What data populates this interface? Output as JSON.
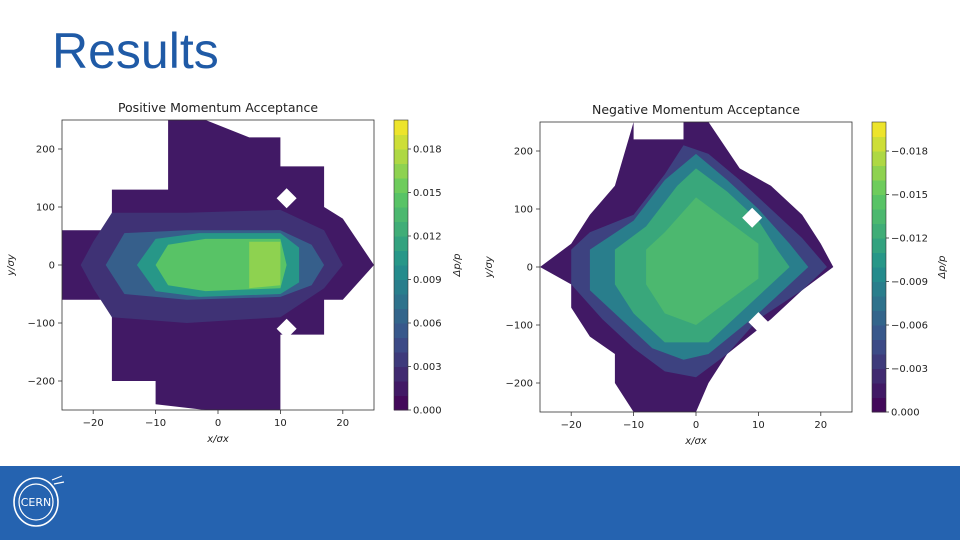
{
  "slide": {
    "title": "Results"
  },
  "colors": {
    "title": "#1f5aa6",
    "footer": "#2563b0"
  },
  "logo": {
    "text": "CERN"
  },
  "chart_data": [
    {
      "type": "heatmap",
      "title": "Positive Momentum Acceptance",
      "xlabel": "x/σx",
      "ylabel": "y/σy",
      "colorbar_label": "Δp/p",
      "xlim": [
        -25,
        25
      ],
      "ylim": [
        -250,
        250
      ],
      "xticks": [
        "−20",
        "−10",
        "0",
        "10",
        "20"
      ],
      "xtick_values": [
        -20,
        -10,
        0,
        10,
        20
      ],
      "yticks": [
        "−200",
        "−100",
        "0",
        "100",
        "200"
      ],
      "ytick_values": [
        -200,
        -100,
        0,
        100,
        200
      ],
      "colorbar_range": [
        0.0,
        0.02
      ],
      "colorbar_ticks": [
        "0.000",
        "0.003",
        "0.006",
        "0.009",
        "0.012",
        "0.015",
        "0.018"
      ],
      "colorbar_tick_values": [
        0.0,
        0.003,
        0.006,
        0.009,
        0.012,
        0.015,
        0.018
      ],
      "colormap": "viridis",
      "reversed": false,
      "regions": [
        {
          "value": 0.0015,
          "points": [
            [
              -17,
              130
            ],
            [
              -8,
              130
            ],
            [
              -8,
              250
            ],
            [
              -2,
              250
            ],
            [
              5,
              220
            ],
            [
              10,
              220
            ],
            [
              10,
              170
            ],
            [
              17,
              170
            ],
            [
              17,
              100
            ],
            [
              20,
              80
            ],
            [
              25,
              0
            ],
            [
              20,
              -60
            ],
            [
              17,
              -60
            ],
            [
              17,
              -120
            ],
            [
              10,
              -120
            ],
            [
              10,
              -250
            ],
            [
              -2,
              -250
            ],
            [
              -10,
              -240
            ],
            [
              -10,
              -200
            ],
            [
              -17,
              -200
            ],
            [
              -17,
              -60
            ],
            [
              -25,
              -60
            ],
            [
              -25,
              60
            ],
            [
              -17,
              60
            ]
          ]
        },
        {
          "value": 0.003,
          "points": [
            [
              -17,
              90
            ],
            [
              -5,
              90
            ],
            [
              10,
              95
            ],
            [
              17,
              60
            ],
            [
              20,
              0
            ],
            [
              17,
              -40
            ],
            [
              10,
              -90
            ],
            [
              -5,
              -100
            ],
            [
              -17,
              -90
            ],
            [
              -20,
              -40
            ],
            [
              -22,
              0
            ],
            [
              -20,
              40
            ]
          ]
        },
        {
          "value": 0.006,
          "points": [
            [
              -15,
              55
            ],
            [
              -5,
              60
            ],
            [
              10,
              60
            ],
            [
              15,
              35
            ],
            [
              17,
              0
            ],
            [
              15,
              -35
            ],
            [
              10,
              -55
            ],
            [
              -5,
              -60
            ],
            [
              -15,
              -50
            ],
            [
              -18,
              0
            ]
          ]
        },
        {
          "value": 0.0105,
          "points": [
            [
              -10,
              45
            ],
            [
              -3,
              55
            ],
            [
              10,
              55
            ],
            [
              13,
              30
            ],
            [
              13,
              -30
            ],
            [
              10,
              -50
            ],
            [
              -3,
              -55
            ],
            [
              -10,
              -45
            ],
            [
              -13,
              0
            ]
          ]
        },
        {
          "value": 0.0145,
          "points": [
            [
              -8,
              35
            ],
            [
              -2,
              45
            ],
            [
              10,
              45
            ],
            [
              11,
              0
            ],
            [
              10,
              -40
            ],
            [
              -2,
              -45
            ],
            [
              -8,
              -35
            ],
            [
              -10,
              0
            ]
          ]
        },
        {
          "value": 0.0165,
          "points": [
            [
              5,
              40
            ],
            [
              10,
              40
            ],
            [
              10,
              -35
            ],
            [
              5,
              -40
            ]
          ]
        }
      ],
      "holes": [
        {
          "x": 11,
          "y": 115
        },
        {
          "x": 11,
          "y": -110
        }
      ]
    },
    {
      "type": "heatmap",
      "title": "Negative Momentum Acceptance",
      "xlabel": "x/σx",
      "ylabel": "y/σy",
      "colorbar_label": "Δp/p",
      "xlim": [
        -25,
        25
      ],
      "ylim": [
        -250,
        250
      ],
      "xticks": [
        "−20",
        "−10",
        "0",
        "10",
        "20"
      ],
      "xtick_values": [
        -20,
        -10,
        0,
        10,
        20
      ],
      "yticks": [
        "−200",
        "−100",
        "0",
        "100",
        "200"
      ],
      "ytick_values": [
        -200,
        -100,
        0,
        100,
        200
      ],
      "colorbar_range": [
        -0.02,
        0.0
      ],
      "colorbar_ticks": [
        "0.000",
        "−0.003",
        "−0.006",
        "−0.009",
        "−0.012",
        "−0.015",
        "−0.018"
      ],
      "colorbar_tick_values": [
        0.0,
        -0.003,
        -0.006,
        -0.009,
        -0.012,
        -0.015,
        -0.018
      ],
      "colormap": "viridis",
      "reversed": true,
      "regions": [
        {
          "value": -0.0015,
          "points": [
            [
              -10,
              250
            ],
            [
              -10,
              220
            ],
            [
              -2,
              220
            ],
            [
              -2,
              250
            ],
            [
              2,
              250
            ],
            [
              7,
              170
            ],
            [
              12,
              140
            ],
            [
              17,
              90
            ],
            [
              20,
              40
            ],
            [
              22,
              0
            ],
            [
              17,
              -40
            ],
            [
              12,
              -90
            ],
            [
              5,
              -150
            ],
            [
              2,
              -200
            ],
            [
              0,
              -250
            ],
            [
              -10,
              -250
            ],
            [
              -13,
              -200
            ],
            [
              -13,
              -150
            ],
            [
              -17,
              -120
            ],
            [
              -20,
              -70
            ],
            [
              -20,
              -30
            ],
            [
              -25,
              0
            ],
            [
              -20,
              40
            ],
            [
              -17,
              90
            ],
            [
              -13,
              140
            ]
          ]
        },
        {
          "value": -0.004,
          "points": [
            [
              -10,
              90
            ],
            [
              -5,
              160
            ],
            [
              -2,
              210
            ],
            [
              2,
              195
            ],
            [
              7,
              150
            ],
            [
              12,
              100
            ],
            [
              17,
              50
            ],
            [
              21,
              0
            ],
            [
              17,
              -40
            ],
            [
              10,
              -90
            ],
            [
              5,
              -150
            ],
            [
              0,
              -190
            ],
            [
              -5,
              -180
            ],
            [
              -10,
              -140
            ],
            [
              -15,
              -90
            ],
            [
              -20,
              -30
            ],
            [
              -20,
              30
            ],
            [
              -17,
              60
            ]
          ]
        },
        {
          "value": -0.0085,
          "points": [
            [
              -10,
              80
            ],
            [
              -5,
              150
            ],
            [
              0,
              195
            ],
            [
              5,
              150
            ],
            [
              10,
              100
            ],
            [
              15,
              40
            ],
            [
              18,
              0
            ],
            [
              15,
              -30
            ],
            [
              10,
              -80
            ],
            [
              2,
              -150
            ],
            [
              -2,
              -160
            ],
            [
              -7,
              -140
            ],
            [
              -12,
              -90
            ],
            [
              -17,
              -40
            ],
            [
              -17,
              30
            ]
          ]
        },
        {
          "value": -0.012,
          "points": [
            [
              -8,
              70
            ],
            [
              -3,
              140
            ],
            [
              0,
              170
            ],
            [
              5,
              130
            ],
            [
              10,
              80
            ],
            [
              13,
              30
            ],
            [
              15,
              0
            ],
            [
              12,
              -30
            ],
            [
              7,
              -80
            ],
            [
              2,
              -130
            ],
            [
              -5,
              -130
            ],
            [
              -10,
              -80
            ],
            [
              -13,
              -30
            ],
            [
              -13,
              30
            ]
          ]
        },
        {
          "value": -0.0135,
          "points": [
            [
              -5,
              60
            ],
            [
              0,
              120
            ],
            [
              5,
              80
            ],
            [
              10,
              40
            ],
            [
              10,
              -20
            ],
            [
              5,
              -60
            ],
            [
              0,
              -100
            ],
            [
              -5,
              -80
            ],
            [
              -8,
              -30
            ],
            [
              -8,
              30
            ]
          ]
        }
      ],
      "holes": [
        {
          "x": 9,
          "y": 85
        },
        {
          "x": 10,
          "y": -95
        }
      ]
    }
  ]
}
